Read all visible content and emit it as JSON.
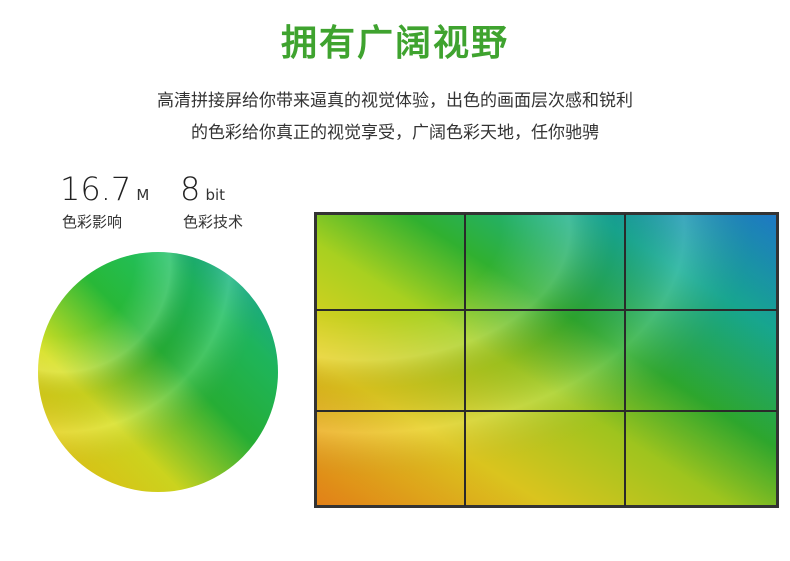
{
  "header": {
    "title": "拥有广阔视野"
  },
  "description": [
    "高清拼接屏给你带来逼真的视觉体验，出色的画面层次感和锐利",
    "的色彩给你真正的视觉享受，广阔色彩天地，任你驰骋"
  ],
  "stats": [
    {
      "value": "16.7",
      "unit": "M",
      "label": "色彩影响"
    },
    {
      "value": "8",
      "unit": "bit",
      "label": "色彩技术"
    }
  ]
}
